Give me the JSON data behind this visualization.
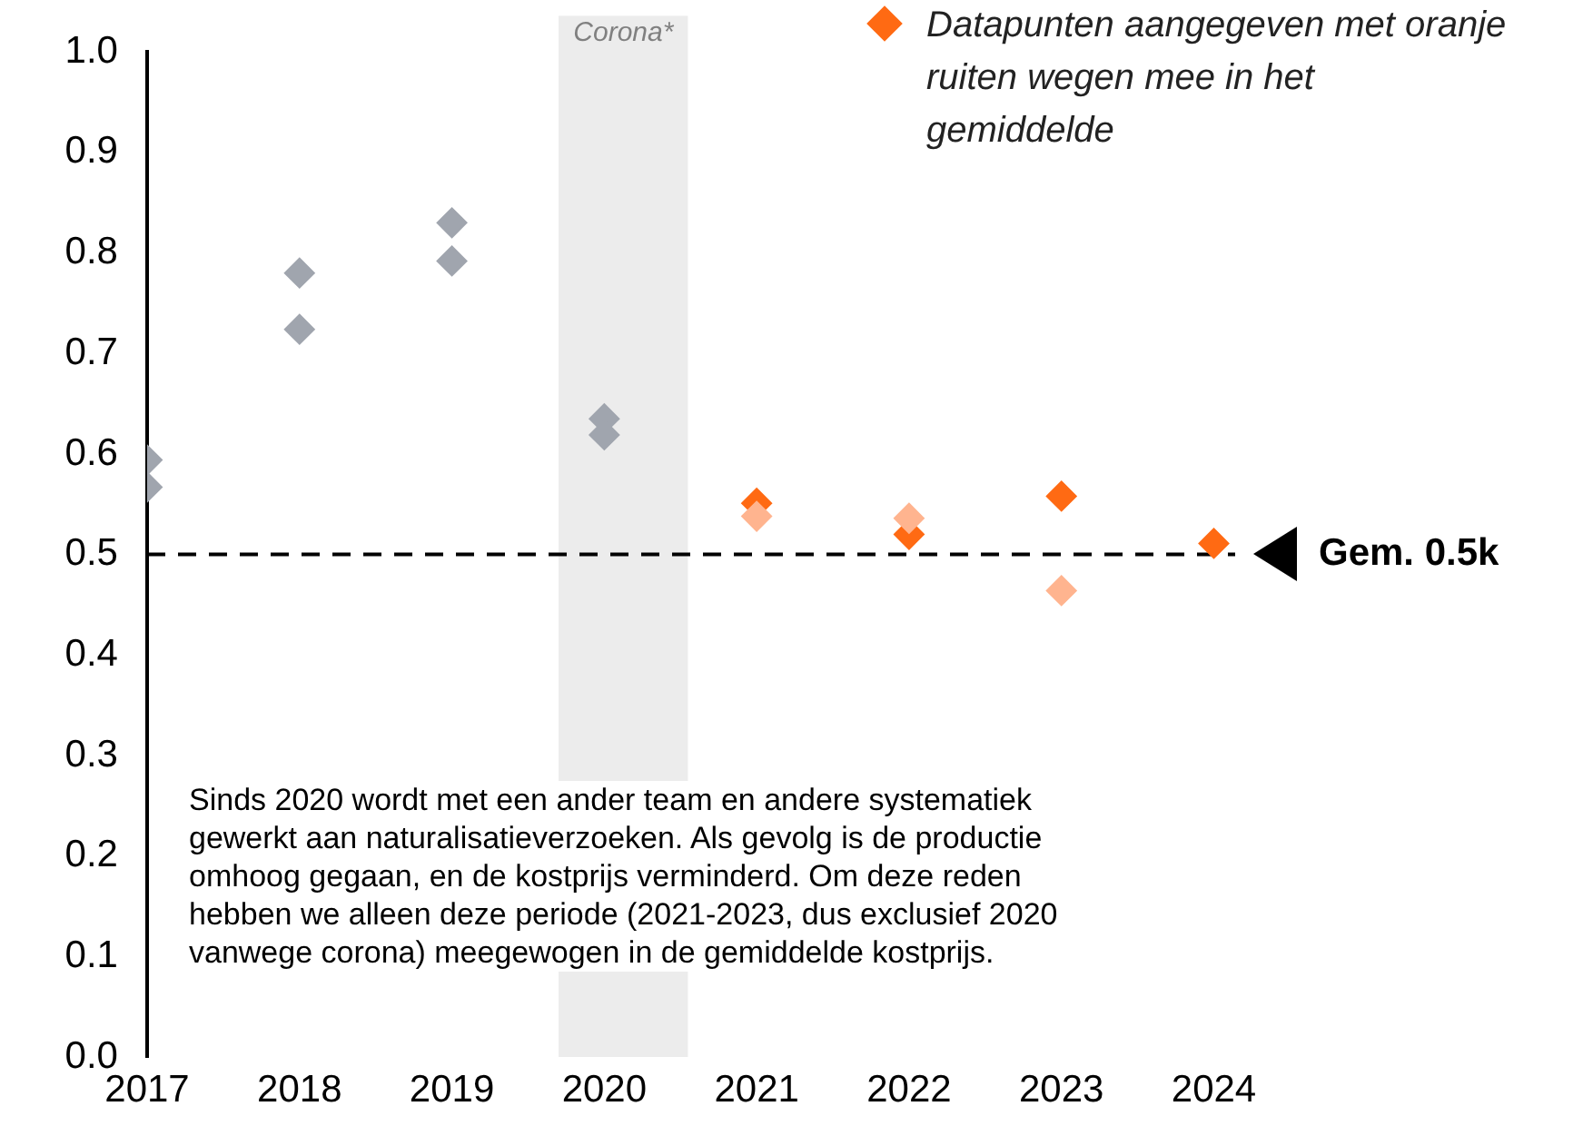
{
  "chart_data": {
    "type": "scatter",
    "marker": "diamond",
    "legend": "top right",
    "grid": false,
    "xlim": [
      2017,
      2024.14
    ],
    "xticks": [
      2017,
      2018,
      2019,
      2020,
      2021,
      2022,
      2023,
      2024
    ],
    "ylim": [
      0,
      1
    ],
    "yticks": [
      {
        "value": 0,
        "label": "0.0"
      },
      0.1,
      0.2,
      0.3,
      0.4,
      0.5,
      0.6,
      0.7,
      0.8,
      0.9,
      {
        "value": 1,
        "label": "1.0"
      }
    ],
    "series": [
      {
        "color": "#a0a5ae",
        "x": [
          2017,
          2017,
          2018,
          2018,
          2019,
          2019,
          2020,
          2020
        ],
        "values": [
          0.594,
          0.567,
          0.78,
          0.724,
          0.83,
          0.792,
          0.635,
          0.619
        ]
      },
      {
        "color": "#ffb48f",
        "x": [
          2021,
          2022,
          2023
        ],
        "values": [
          0.538,
          0.536,
          0.464
        ]
      },
      {
        "name": "Datapunten aangegeven met oranje ruiten wegen mee in het gemiddelde",
        "color": "#ff6a13",
        "x": [
          2021,
          2022,
          2023,
          2024
        ],
        "values": [
          0.551,
          0.52,
          0.558,
          0.511
        ]
      }
    ],
    "ref_lines": [
      {
        "axis": "y",
        "value": 0.5,
        "label": "Gem. 0.5k",
        "color": "#000000",
        "line_style": "dashed"
      }
    ],
    "bands": [
      {
        "axis": "x",
        "from": 2019.7,
        "to": 2020.55,
        "label": "Corona*",
        "color": "#ececec"
      }
    ],
    "annotations": [
      "Sinds 2020 wordt met een ander team en andere systematiek gewerkt aan naturalisatieverzoeken. Als gevolg is de productie omhoog gegaan, en de kostprijs verminderd. Om deze reden hebben we alleen deze periode (2021-2023, dus exclusief 2020 vanwege corona) meegewogen in de gemiddelde kostprijs."
    ]
  }
}
